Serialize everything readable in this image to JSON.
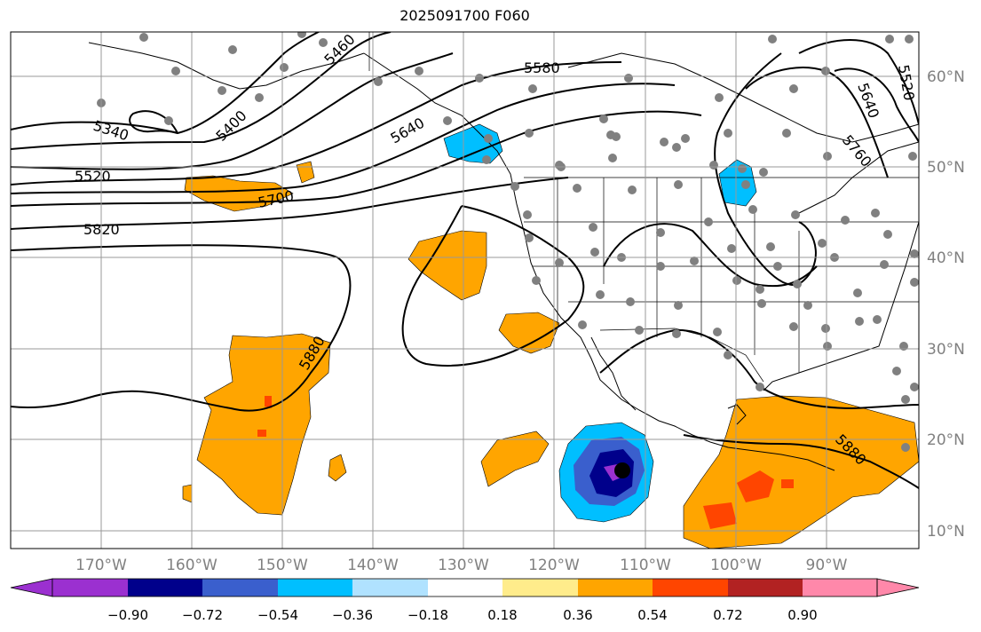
{
  "title": "2025091700 F060",
  "lon_labels": [
    "170°W",
    "160°W",
    "150°W",
    "140°W",
    "130°W",
    "120°W",
    "110°W",
    "100°W",
    "90°W"
  ],
  "lat_labels": [
    "60°N",
    "50°N",
    "40°N",
    "30°N",
    "20°N",
    "10°N"
  ],
  "contour_labels": [
    "5340",
    "5400",
    "5460",
    "5520",
    "5580",
    "5640",
    "5700",
    "5820",
    "5880",
    "5640",
    "5760",
    "5520",
    "5880"
  ],
  "colorbar": {
    "tick_labels": [
      "−0.90",
      "−0.72",
      "−0.54",
      "−0.36",
      "−0.18",
      "0.18",
      "0.36",
      "0.54",
      "0.72",
      "0.90"
    ],
    "colors": [
      "#9b30d0",
      "#00008b",
      "#3a5fcd",
      "#00bfff",
      "#b0e2ff",
      "#ffffff",
      "#ffec8b",
      "#ffa500",
      "#ff4500",
      "#b22222",
      "#ff88aa"
    ]
  },
  "map": {
    "lon_range": [
      "180°W",
      "80°W"
    ],
    "lat_range": [
      "8°N",
      "65°N"
    ],
    "fill_colors": {
      "orange": "#ffa500",
      "red": "#ff4500",
      "lightblue": "#00bfff",
      "navy": "#00008b",
      "blue": "#3a5fcd",
      "purple": "#9b30d0",
      "station": "#808080"
    }
  }
}
